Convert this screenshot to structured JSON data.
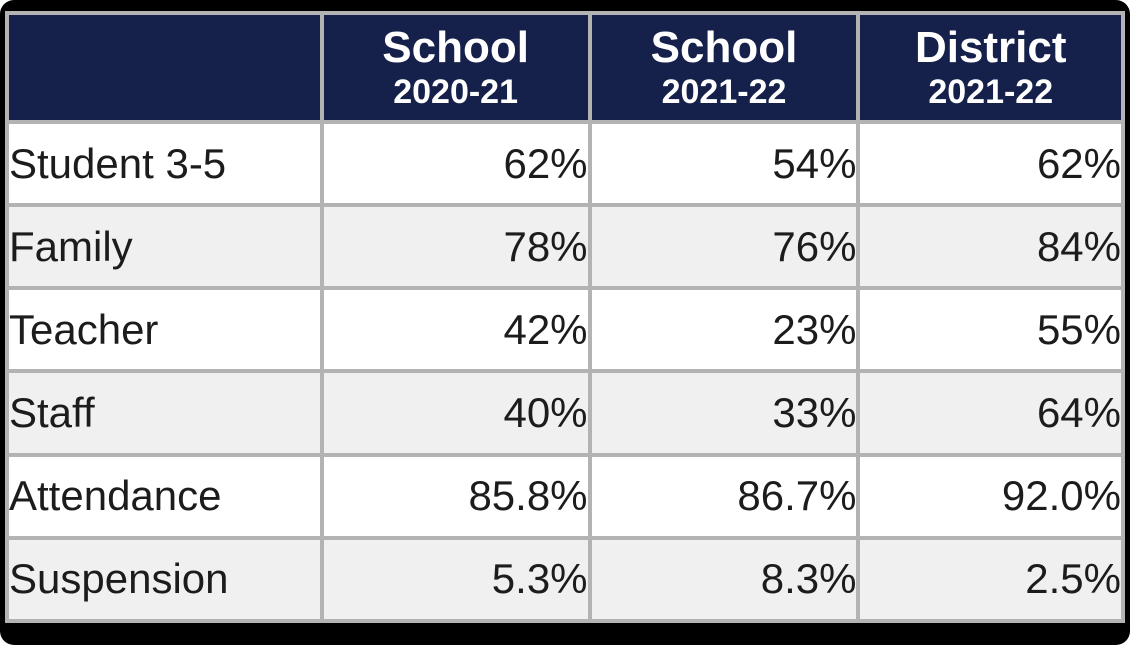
{
  "chart_data": {
    "type": "table",
    "columns": [
      {
        "title": "",
        "subtitle": ""
      },
      {
        "title": "School",
        "subtitle": "2020-21"
      },
      {
        "title": "School",
        "subtitle": "2021-22"
      },
      {
        "title": "District",
        "subtitle": "2021-22"
      }
    ],
    "rows": [
      {
        "label": "Student 3-5",
        "values": [
          "62%",
          "54%",
          "62%"
        ]
      },
      {
        "label": "Family",
        "values": [
          "78%",
          "76%",
          "84%"
        ]
      },
      {
        "label": "Teacher",
        "values": [
          "42%",
          "23%",
          "55%"
        ]
      },
      {
        "label": "Staff",
        "values": [
          "40%",
          "33%",
          "64%"
        ]
      },
      {
        "label": "Attendance",
        "values": [
          "85.8%",
          "86.7%",
          "92.0%"
        ]
      },
      {
        "label": "Suspension",
        "values": [
          "5.3%",
          "8.3%",
          "2.5%"
        ]
      }
    ],
    "layout": {
      "header_background": "#15204b",
      "header_text_color": "#ffffff",
      "row_stripe_colors": [
        "#ffffff",
        "#f0f0f0"
      ],
      "grid_color": "#b3b3b3",
      "frame_color": "#000000",
      "value_alignment": "right",
      "label_alignment": "left"
    }
  }
}
